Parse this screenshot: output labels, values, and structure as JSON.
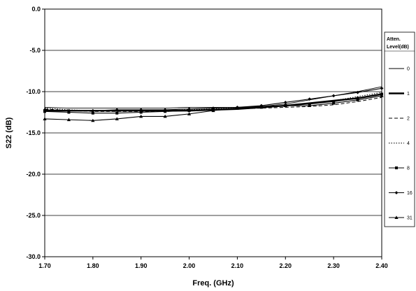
{
  "chart_data": {
    "type": "line",
    "title": "",
    "xlabel": "Freq. (GHz)",
    "ylabel": "S22 (dB)",
    "xlim": [
      1.7,
      2.4
    ],
    "ylim": [
      -30,
      0
    ],
    "x_ticks": [
      "1.70",
      "1.80",
      "1.90",
      "2.00",
      "2.10",
      "2.20",
      "2.30",
      "2.40"
    ],
    "y_ticks": [
      "0.0",
      "-5.0",
      "-10.0",
      "-15.0",
      "-20.0",
      "-25.0",
      "-30.0"
    ],
    "grid": "horizontal",
    "legend": {
      "title_lines": [
        "Atten.",
        "Level(dB)"
      ],
      "placement": "right"
    },
    "x": [
      1.7,
      1.75,
      1.8,
      1.85,
      1.9,
      1.95,
      2.0,
      2.05,
      2.1,
      2.15,
      2.2,
      2.25,
      2.3,
      2.35,
      2.4
    ],
    "series": [
      {
        "name": "0",
        "style": "thin",
        "values": [
          -11.9,
          -12.0,
          -12.0,
          -12.0,
          -12.0,
          -12.0,
          -11.9,
          -11.9,
          -11.9,
          -11.8,
          -11.5,
          -11.0,
          -10.5,
          -10.0,
          -9.4
        ]
      },
      {
        "name": "1",
        "style": "thick",
        "values": [
          -12.3,
          -12.3,
          -12.3,
          -12.3,
          -12.3,
          -12.3,
          -12.3,
          -12.2,
          -12.1,
          -11.9,
          -11.7,
          -11.4,
          -11.1,
          -10.8,
          -10.3
        ]
      },
      {
        "name": "2",
        "style": "dashed",
        "values": [
          -12.1,
          -12.3,
          -12.4,
          -12.4,
          -12.4,
          -12.4,
          -12.3,
          -12.2,
          -12.1,
          -12.0,
          -11.9,
          -11.8,
          -11.6,
          -11.2,
          -10.7
        ]
      },
      {
        "name": "4",
        "style": "dotted",
        "values": [
          -12.0,
          -12.2,
          -12.3,
          -12.3,
          -12.3,
          -12.3,
          -12.2,
          -12.1,
          -12.0,
          -11.9,
          -11.7,
          -11.4,
          -11.1,
          -10.6,
          -10.1
        ]
      },
      {
        "name": "8",
        "style": "square",
        "values": [
          -12.4,
          -12.5,
          -12.6,
          -12.6,
          -12.5,
          -12.4,
          -12.3,
          -12.2,
          -12.0,
          -11.9,
          -11.7,
          -11.5,
          -11.2,
          -10.8,
          -10.3
        ]
      },
      {
        "name": "16",
        "style": "diamond",
        "values": [
          -12.2,
          -12.3,
          -12.3,
          -12.2,
          -12.2,
          -12.2,
          -12.1,
          -12.0,
          -11.9,
          -11.7,
          -11.3,
          -10.9,
          -10.5,
          -10.1,
          -9.6
        ]
      },
      {
        "name": "31",
        "style": "triangle",
        "values": [
          -13.3,
          -13.4,
          -13.5,
          -13.3,
          -13.0,
          -13.0,
          -12.7,
          -12.3,
          -12.0,
          -11.8,
          -11.7,
          -11.7,
          -11.4,
          -11.0,
          -10.5
        ]
      }
    ]
  }
}
